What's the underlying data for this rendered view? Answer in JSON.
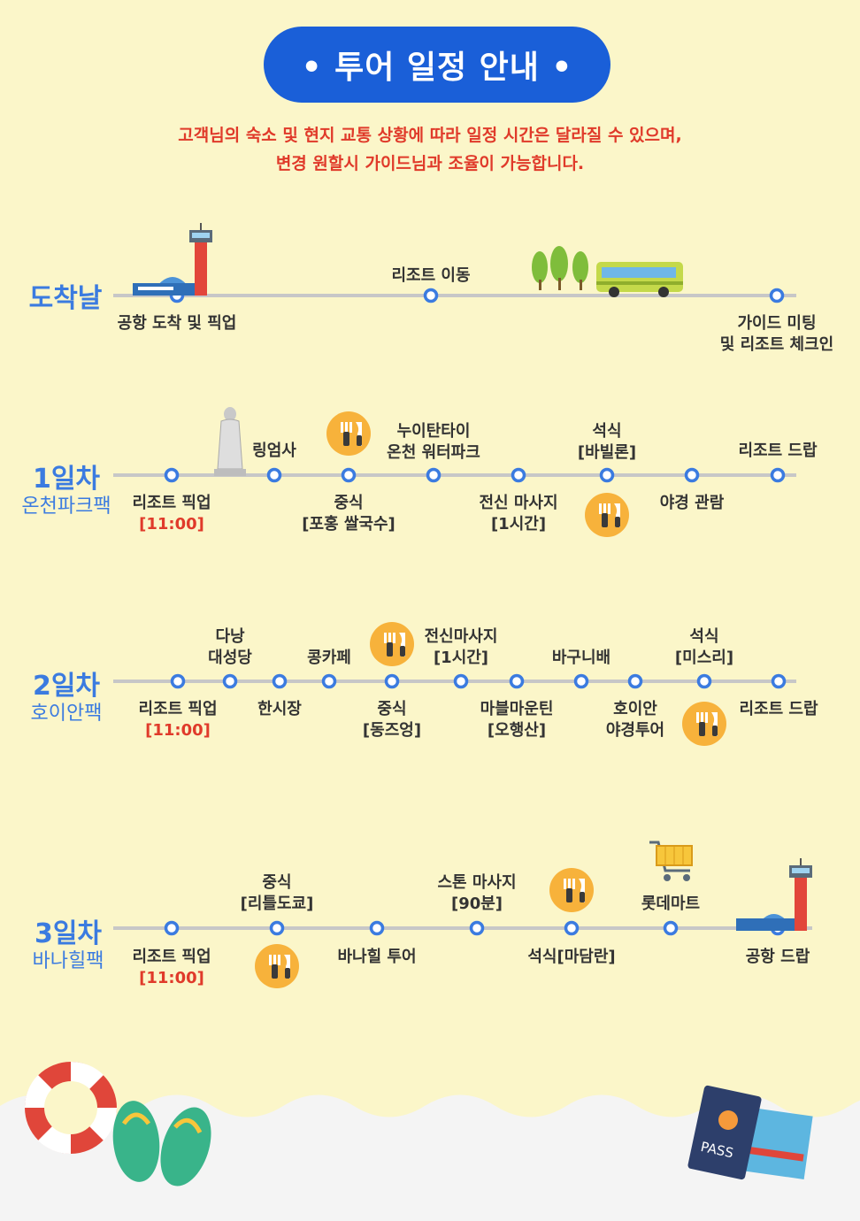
{
  "header": {
    "title": "• 투어 일정 안내 •"
  },
  "notice": {
    "line1": "고객님의 숙소 및 현지 교통 상황에 따라 일정 시간은 달라질 수 있으며,",
    "line2": "변경 원할시 가이드님과 조율이 가능합니다."
  },
  "colors": {
    "title_bg": "#1a5fd8",
    "day_title": "#3b7be0",
    "notice": "#e03a2a",
    "line": "#c7c7c7",
    "meal": "#f7b23b"
  },
  "icons": [
    "airport-tower-icon",
    "bus-icon",
    "tree-icon",
    "statue-icon",
    "meal-icon",
    "shopping-cart-icon",
    "lifebuoy-icon",
    "flip-flops-icon",
    "passport-icon"
  ],
  "days": [
    {
      "title": "도착날",
      "subtitle": "",
      "labels": {
        "airport_arrival": "공항 도착 및 픽업",
        "resort_move": "리조트 이동",
        "guide_meeting_1": "가이드 미팅",
        "guide_meeting_2": "및 리조트 체크인"
      }
    },
    {
      "title": "1일차",
      "subtitle": "온천파크팩",
      "labels": {
        "resort_pickup": "리조트 픽업",
        "pickup_time": "[11:00]",
        "linh_ung": "링엄사",
        "lunch": "중식",
        "lunch_menu": "[포홍 쌀국수]",
        "waterpark_1": "누이탄타이",
        "waterpark_2": "온천 워터파크",
        "massage": "전신 마사지",
        "massage_time": "[1시간]",
        "dinner": "석식",
        "dinner_place": "[바빌론]",
        "night_view": "야경 관람",
        "resort_drop": "리조트 드랍"
      }
    },
    {
      "title": "2일차",
      "subtitle": "호이안팩",
      "labels": {
        "resort_pickup": "리조트 픽업",
        "pickup_time": "[11:00]",
        "cathedral_1": "다낭",
        "cathedral_2": "대성당",
        "han_market": "한시장",
        "kong_cafe": "콩카페",
        "lunch": "중식",
        "lunch_place": "[동즈엉]",
        "massage": "전신마사지",
        "massage_time": "[1시간]",
        "marble_1": "마블마운틴",
        "marble_2": "[오행산]",
        "basket_boat": "바구니배",
        "hoian_night_1": "호이안",
        "hoian_night_2": "야경투어",
        "dinner": "석식",
        "dinner_place": "[미스리]",
        "resort_drop": "리조트 드랍"
      }
    },
    {
      "title": "3일차",
      "subtitle": "바나힐팩",
      "labels": {
        "resort_pickup": "리조트 픽업",
        "pickup_time": "[11:00]",
        "lunch": "중식",
        "lunch_place": "[리틀도쿄]",
        "bana_tour": "바나힐 투어",
        "stone_massage": "스톤 마사지",
        "massage_time": "[90분]",
        "dinner": "석식[마담란]",
        "lotte_mart": "롯데마트",
        "airport_drop": "공항 드랍"
      }
    }
  ],
  "passport": {
    "text": "PASS"
  }
}
